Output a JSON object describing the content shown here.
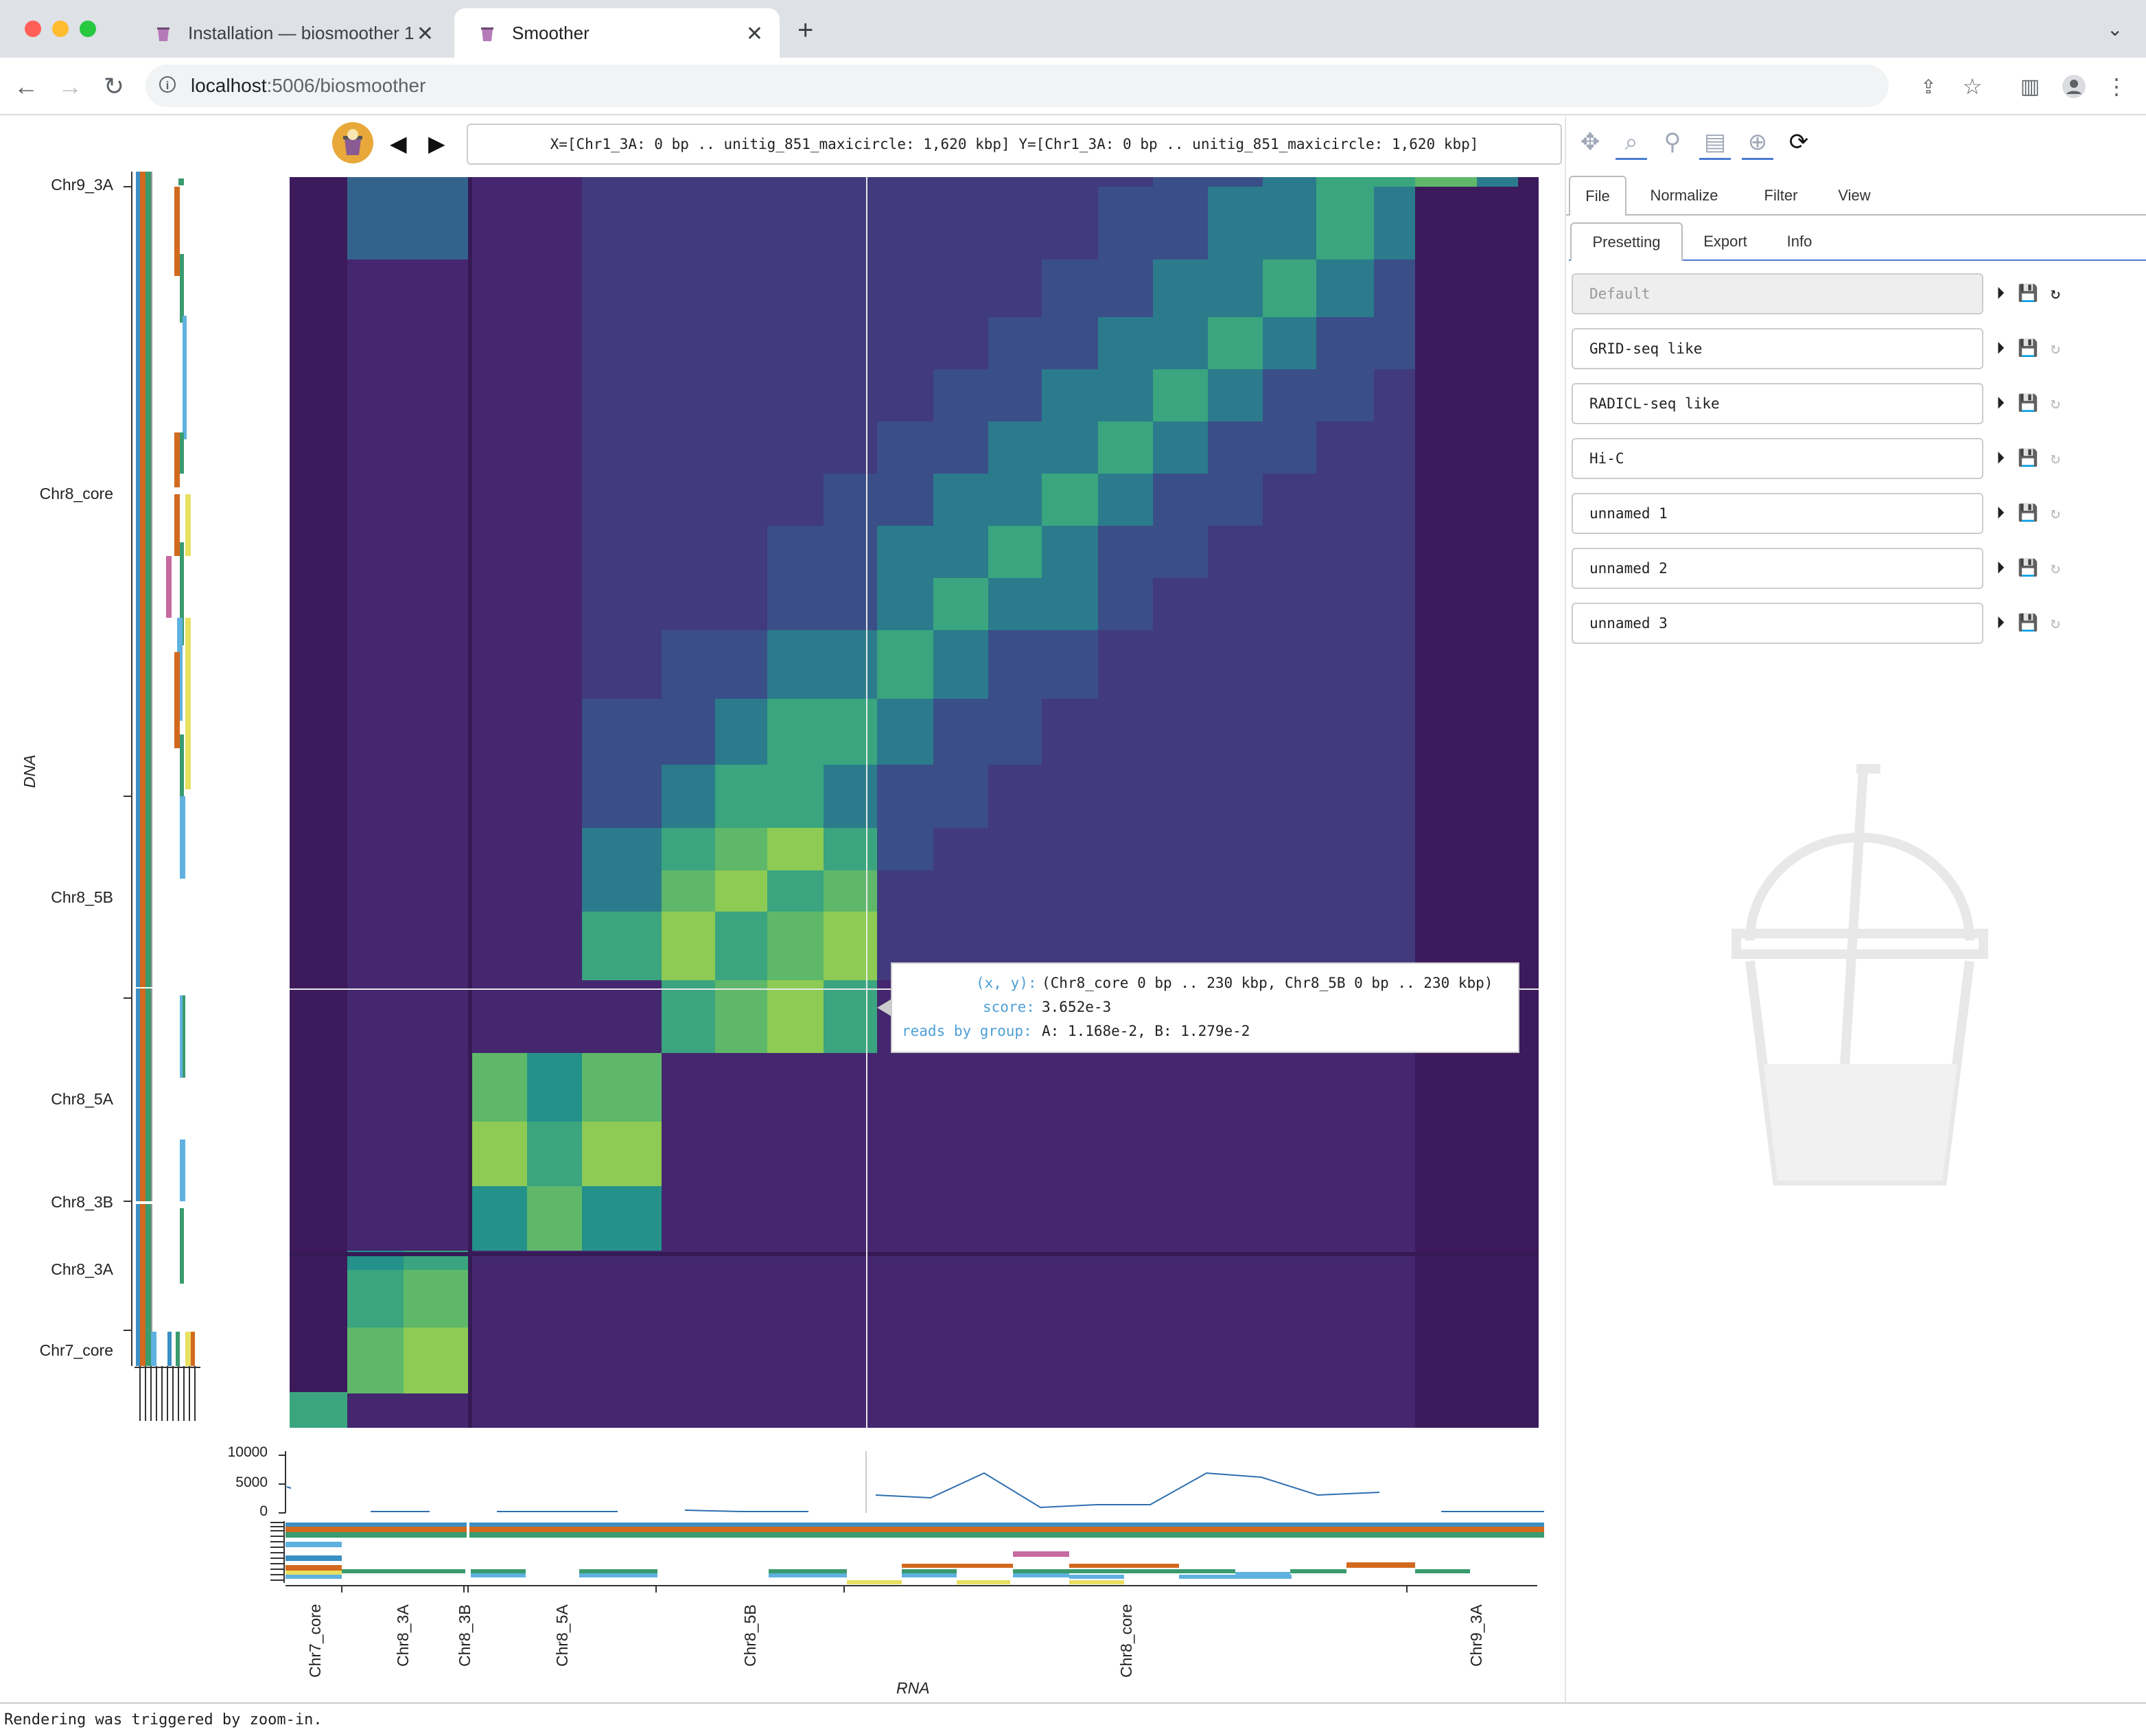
{
  "browser": {
    "tabs": [
      {
        "label": "Installation — biosmoother 1.0",
        "active": false
      },
      {
        "label": "Smoother",
        "active": true
      }
    ],
    "url_host": "localhost",
    "url_rest": ":5006/biosmoother"
  },
  "app": {
    "coords": "X=[Chr1_3A: 0 bp .. unitig_851_maxicircle: 1,620 kbp] Y=[Chr1_3A: 0 bp .. unitig_851_maxicircle: 1,620 kbp]",
    "main_tabs": [
      "File",
      "Normalize",
      "Filter",
      "View"
    ],
    "sub_tabs": [
      "Presetting",
      "Export",
      "Info"
    ],
    "presets": [
      "Default",
      "GRID-seq like",
      "RADICL-seq like",
      "Hi-C",
      "unnamed 1",
      "unnamed 2",
      "unnamed 3"
    ]
  },
  "y_axis": {
    "title": "DNA",
    "labels": [
      "Chr9_3A",
      "Chr8_core",
      "Chr8_5B",
      "Chr8_5A",
      "Chr8_3B",
      "Chr8_3A",
      "Chr7_core"
    ]
  },
  "x_axis": {
    "title": "RNA",
    "labels": [
      "Chr7_core",
      "Chr8_3A",
      "Chr8_3B",
      "Chr8_5A",
      "Chr8_5B",
      "Chr8_core",
      "Chr9_3A"
    ]
  },
  "coverage_ticks": [
    "10000",
    "5000",
    "0"
  ],
  "tooltip": {
    "xy_key": "(x, y):",
    "xy_val": "(Chr8_core 0 bp .. 230 kbp, Chr8_5B 0 bp .. 230 kbp)",
    "score_key": "score:",
    "score_val": "3.652e-3",
    "reads_key": "reads by group:",
    "reads_val": "A: 1.168e-2, B: 1.279e-2"
  },
  "status": "Rendering was triggered by zoom-in."
}
